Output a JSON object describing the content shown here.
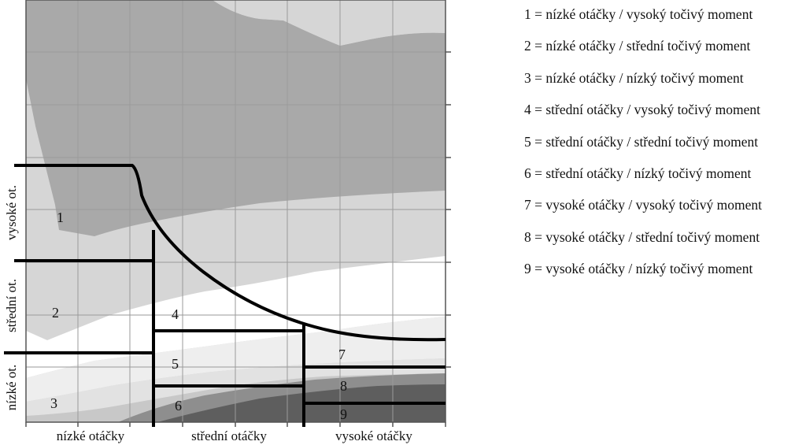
{
  "zones": [
    {
      "id": "1",
      "label": "1"
    },
    {
      "id": "2",
      "label": "2"
    },
    {
      "id": "3",
      "label": "3"
    },
    {
      "id": "4",
      "label": "4"
    },
    {
      "id": "5",
      "label": "5"
    },
    {
      "id": "6",
      "label": "6"
    },
    {
      "id": "7",
      "label": "7"
    },
    {
      "id": "8",
      "label": "8"
    },
    {
      "id": "9",
      "label": "9"
    }
  ],
  "x_axis": {
    "labels": [
      "nízké otáčky",
      "střední otáčky",
      "vysoké otáčky"
    ]
  },
  "y_axis": {
    "labels": [
      "vysoké ot.",
      "střední ot.",
      "nízké ot."
    ]
  },
  "legend": [
    "1 = nízké otáčky / vysoký točivý moment",
    "2 = nízké otáčky / střední točivý moment",
    "3 = nízké otáčky / nízký točivý moment",
    "4 = střední otáčky / vysoký točivý moment",
    "5 = střední otáčky / střední točivý moment",
    "6 = střední otáčky / nízký točivý moment",
    "7 = vysoké otáčky / vysoký točivý moment",
    "8 = vysoké otáčky / střední točivý moment",
    "9 = vysoké otáčky / nízký točivý moment"
  ],
  "colors": {
    "band_light": "#d6d6d6",
    "band_dark": "#a9a9a9",
    "band_white": "#ffffff",
    "band_pale": "#eeeeee",
    "band_lower": "#e2e2e2",
    "band_lowest": "#c8c8c8",
    "band_deep": "#8e8e8e",
    "band_darkest": "#5e5e5e",
    "grid": "#9a9a9a",
    "boundary": "#000000"
  }
}
